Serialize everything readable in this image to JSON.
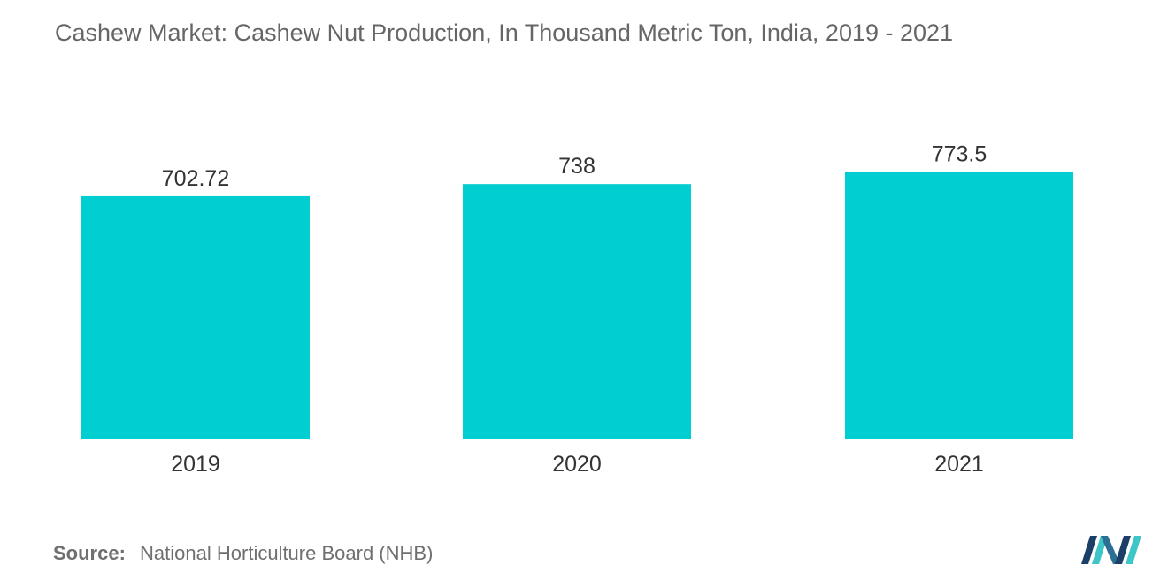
{
  "title": "Cashew Market: Cashew Nut Production, In Thousand Metric Ton, India, 2019 - 2021",
  "source": {
    "label": "Source:",
    "text": "National Horticulture Board (NHB)"
  },
  "colors": {
    "bar": "#00CED1",
    "text": "#333333",
    "title": "#666666"
  },
  "chart_data": {
    "type": "bar",
    "title": "Cashew Market: Cashew Nut Production, In Thousand Metric Ton, India, 2019 - 2021",
    "categories": [
      "2019",
      "2020",
      "2021"
    ],
    "values": [
      702.72,
      738,
      773.5
    ],
    "value_labels": [
      "702.72",
      "738",
      "773.5"
    ],
    "xlabel": "",
    "ylabel": "",
    "grid": false,
    "legend": "none"
  },
  "logo": {
    "icon": "mordor-intelligence-logo-icon"
  }
}
